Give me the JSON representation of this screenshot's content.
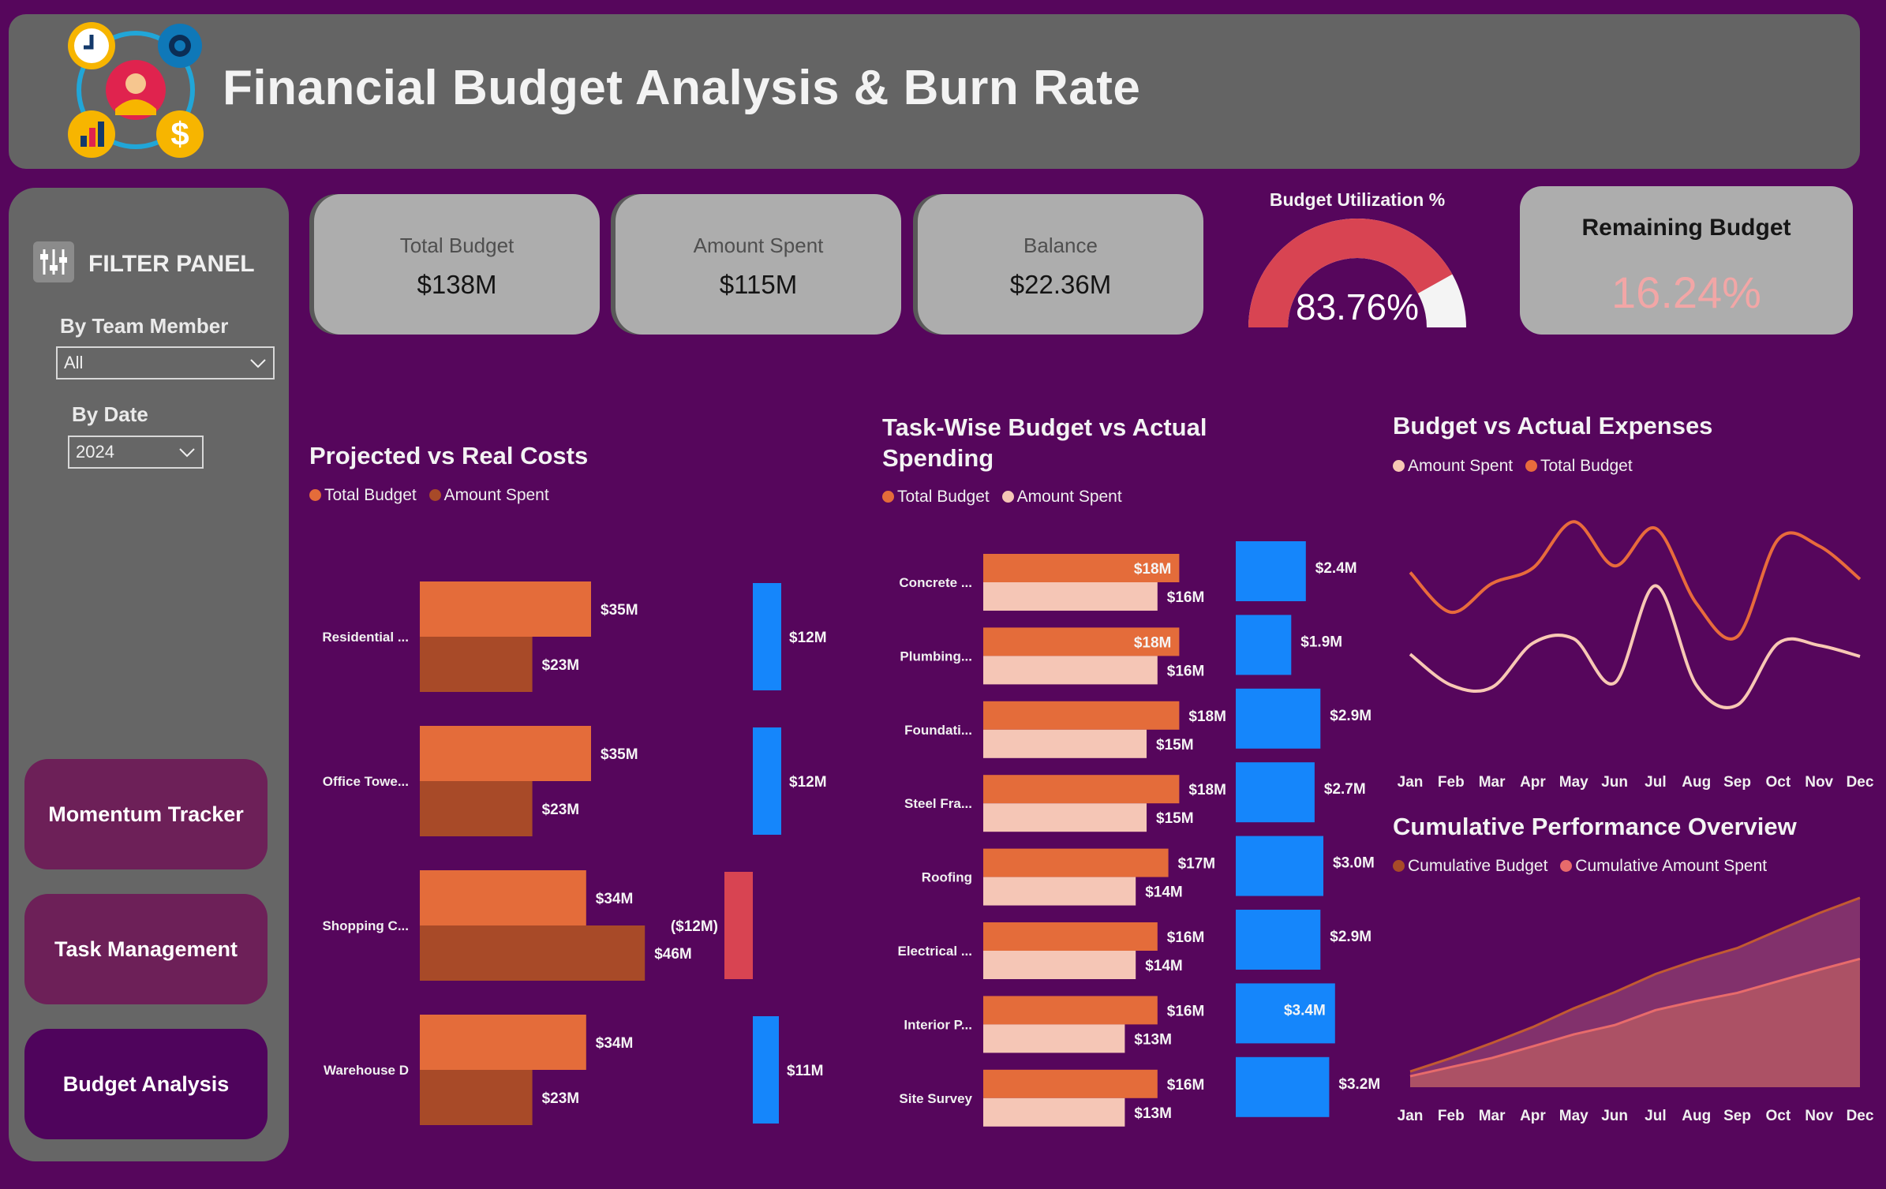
{
  "header": {
    "title": "Financial Budget Analysis & Burn Rate"
  },
  "filter_panel": {
    "title": "FILTER PANEL",
    "team_member": {
      "label": "By Team Member",
      "value": "All"
    },
    "date": {
      "label": "By Date",
      "value": "2024"
    }
  },
  "nav": [
    {
      "label": "Momentum Tracker"
    },
    {
      "label": "Task Management"
    },
    {
      "label": "Budget Analysis",
      "active": true
    }
  ],
  "kpis": [
    {
      "label": "Total Budget",
      "value": "$138M"
    },
    {
      "label": "Amount Spent",
      "value": "$115M"
    },
    {
      "label": "Balance",
      "value": "$22.36M"
    }
  ],
  "gauge": {
    "title": "Budget Utilization %",
    "value_label": "83.76%",
    "fraction": 0.8376
  },
  "remaining": {
    "label": "Remaining Budget",
    "value": "16.24%"
  },
  "colors": {
    "total_budget": "#e46c3a",
    "amount_spent_dark": "#a84a28",
    "amount_spent_light": "#f5c6b6",
    "balance_positive": "#1586fb",
    "balance_negative": "#d84452",
    "line_total": "#e86b3c",
    "line_spent": "#f8c8b4"
  },
  "chart_data": [
    {
      "id": "projected-vs-real",
      "type": "bar",
      "title": "Projected vs Real Costs",
      "legend": [
        "Total Budget",
        "Amount Spent"
      ],
      "categories": [
        "Residential ...",
        "Office Towe...",
        "Shopping C...",
        "Warehouse D"
      ],
      "series": [
        {
          "name": "Total Budget",
          "values": [
            35,
            35,
            34,
            34
          ],
          "labels": [
            "$35M",
            "$35M",
            "$34M",
            "$34M"
          ]
        },
        {
          "name": "Amount Spent",
          "values": [
            23,
            23,
            46,
            23
          ],
          "labels": [
            "$23M",
            "$23M",
            "$46M",
            "$23M"
          ]
        }
      ],
      "balance": {
        "values": [
          12,
          12,
          -12,
          11
        ],
        "labels": [
          "$12M",
          "$12M",
          "($12M)",
          "$11M"
        ]
      }
    },
    {
      "id": "task-wise",
      "type": "bar",
      "title": "Task-Wise Budget vs Actual Spending",
      "legend": [
        "Total Budget",
        "Amount Spent"
      ],
      "categories": [
        "Concrete ...",
        "Plumbing...",
        "Foundati...",
        "Steel Fra...",
        "Roofing",
        "Electrical ...",
        "Interior P...",
        "Site Survey"
      ],
      "series": [
        {
          "name": "Total Budget",
          "values": [
            18,
            18,
            18,
            18,
            17,
            16,
            16,
            16
          ],
          "labels": [
            "$18M",
            "$18M",
            "$18M",
            "$18M",
            "$17M",
            "$16M",
            "$16M",
            "$16M"
          ]
        },
        {
          "name": "Amount Spent",
          "values": [
            16,
            16,
            15,
            15,
            14,
            14,
            13,
            13
          ],
          "labels": [
            "$16M",
            "$16M",
            "$15M",
            "$15M",
            "$14M",
            "$14M",
            "$13M",
            "$13M"
          ]
        }
      ],
      "balance": {
        "values": [
          2.4,
          1.9,
          2.9,
          2.7,
          3.0,
          2.9,
          3.4,
          3.2
        ],
        "labels": [
          "$2.4M",
          "$1.9M",
          "$2.9M",
          "$2.7M",
          "$3.0M",
          "$2.9M",
          "$3.4M",
          "$3.2M"
        ]
      }
    },
    {
      "id": "budget-vs-actual",
      "type": "line",
      "title": "Budget vs Actual Expenses",
      "legend": [
        "Amount Spent",
        "Total Budget"
      ],
      "x": [
        "Jan",
        "Feb",
        "Mar",
        "Apr",
        "May",
        "Jun",
        "Jul",
        "Aug",
        "Sep",
        "Oct",
        "Nov",
        "Dec"
      ],
      "series": [
        {
          "name": "Total Budget",
          "values": [
            12.3,
            10.5,
            11.8,
            12.5,
            14.6,
            12.6,
            14.3,
            10.9,
            9.4,
            13.8,
            13.5,
            12.0
          ]
        },
        {
          "name": "Amount Spent",
          "values": [
            8.6,
            7.2,
            7.1,
            9.1,
            9.3,
            7.3,
            11.7,
            7.2,
            6.3,
            9.1,
            9.0,
            8.5
          ]
        }
      ]
    },
    {
      "id": "cumulative",
      "type": "area",
      "title": "Cumulative Performance Overview",
      "legend": [
        "Cumulative Budget",
        "Cumulative Amount Spent"
      ],
      "x": [
        "Jan",
        "Feb",
        "Mar",
        "Apr",
        "May",
        "Jun",
        "Jul",
        "Aug",
        "Sep",
        "Oct",
        "Nov",
        "Dec"
      ],
      "series": [
        {
          "name": "Cumulative Budget",
          "values": [
            12.3,
            22.8,
            34.6,
            47.1,
            61.7,
            74.3,
            88.6,
            99.5,
            108.9,
            122.7,
            136.2,
            148.2
          ]
        },
        {
          "name": "Cumulative Amount Spent",
          "values": [
            8.6,
            15.8,
            22.9,
            32.0,
            41.3,
            48.6,
            60.3,
            67.5,
            73.8,
            82.9,
            91.9,
            100.4
          ]
        }
      ],
      "ylim": [
        0,
        150
      ]
    }
  ]
}
